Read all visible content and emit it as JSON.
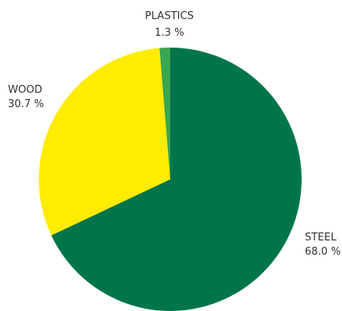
{
  "chart_data": {
    "type": "pie",
    "title": "",
    "slices": [
      {
        "label": "STEEL",
        "value": 68.0,
        "value_text": "68.0 %",
        "color": "#00754a"
      },
      {
        "label": "WOOD",
        "value": 30.7,
        "value_text": "30.7 %",
        "color": "#ffec00"
      },
      {
        "label": "PLASTICS",
        "value": 1.3,
        "value_text": "1.3 %",
        "color": "#39a650"
      }
    ],
    "start_angle_deg": 0,
    "direction": "clockwise",
    "legend": "none"
  }
}
